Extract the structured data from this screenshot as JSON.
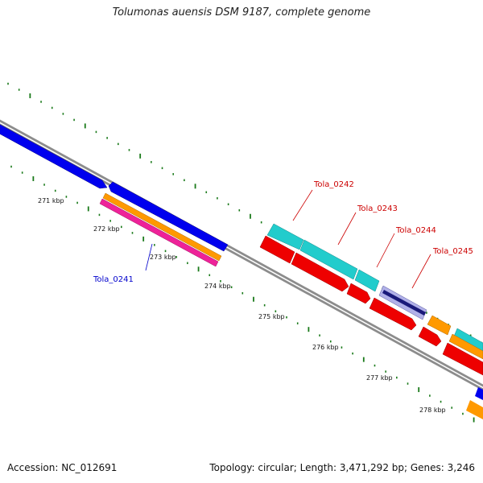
{
  "title": "Tolumonas auensis DSM 9187, complete genome",
  "footer": {
    "accession": "Accession: NC_012691",
    "summary": "Topology: circular; Length: 3,471,292 bp; Genes: 3,246"
  },
  "scale_labels": [
    "271 kbp",
    "272 kbp",
    "273 kbp",
    "274 kbp",
    "275 kbp",
    "276 kbp",
    "277 kbp",
    "278 kbp"
  ],
  "gene_labels": [
    {
      "text": "Tola_0241",
      "color": "#0000cc"
    },
    {
      "text": "Tola_0242",
      "color": "#cc0000"
    },
    {
      "text": "Tola_0243",
      "color": "#cc0000"
    },
    {
      "text": "Tola_0244",
      "color": "#cc0000"
    },
    {
      "text": "Tola_0245",
      "color": "#cc0000"
    }
  ],
  "colors": {
    "backbone": "#8c8c8c",
    "tick": "#1a7a1a",
    "blue": "#0000ee",
    "orange": "#ff9900",
    "pink": "#ee2299",
    "cyan": "#22cccc",
    "red": "#ee0000",
    "navy": "#1a1a7a",
    "lavender": "#b0b0e8"
  }
}
